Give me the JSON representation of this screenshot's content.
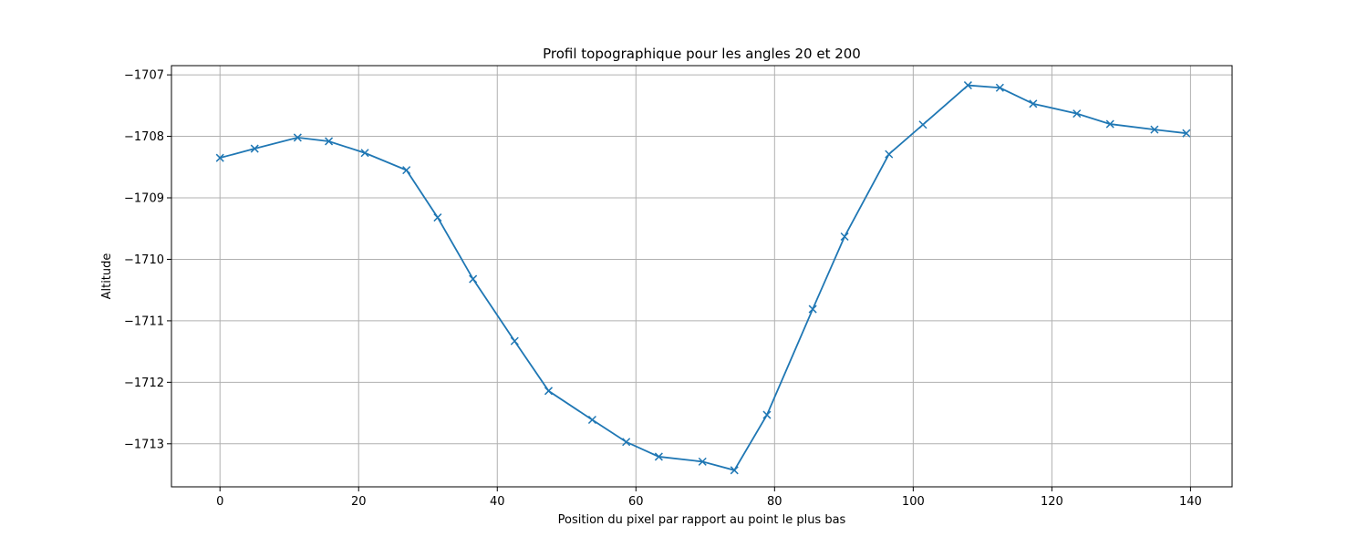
{
  "chart_data": {
    "type": "line",
    "title": "Profil topographique pour les angles 20 et 200",
    "xlabel": "Position du pixel par rapport au point le plus bas",
    "ylabel": "Altitude",
    "xlim": [
      -7,
      146
    ],
    "ylim": [
      -1713.7,
      -1706.85
    ],
    "xticks": [
      0,
      20,
      40,
      60,
      80,
      100,
      120,
      140
    ],
    "yticks": [
      -1707,
      -1708,
      -1709,
      -1710,
      -1711,
      -1712,
      -1713
    ],
    "xtick_labels": [
      "0",
      "20",
      "40",
      "60",
      "80",
      "100",
      "120",
      "140"
    ],
    "ytick_labels": [
      "−1707",
      "−1708",
      "−1709",
      "−1710",
      "−1711",
      "−1712",
      "−1713"
    ],
    "grid": true,
    "marker": "x",
    "color": "#1f77b4",
    "series": [
      {
        "x": [
          0,
          5,
          11.2,
          15.7,
          20.9,
          26.9,
          31.4,
          36.5,
          42.5,
          47.4,
          53.7,
          58.6,
          63.3,
          69.6,
          74.2,
          78.9,
          85.5,
          90.1,
          96.5,
          101.4,
          107.9,
          112.5,
          117.3,
          123.6,
          128.4,
          134.8,
          139.4
        ],
        "y": [
          -1708.35,
          -1708.2,
          -1708.02,
          -1708.08,
          -1708.27,
          -1708.55,
          -1709.32,
          -1710.32,
          -1711.33,
          -1712.14,
          -1712.61,
          -1712.97,
          -1713.21,
          -1713.29,
          -1713.43,
          -1712.53,
          -1710.81,
          -1709.63,
          -1708.29,
          -1707.81,
          -1707.17,
          -1707.21,
          -1707.47,
          -1707.63,
          -1707.8,
          -1707.89,
          -1707.95
        ]
      }
    ]
  }
}
